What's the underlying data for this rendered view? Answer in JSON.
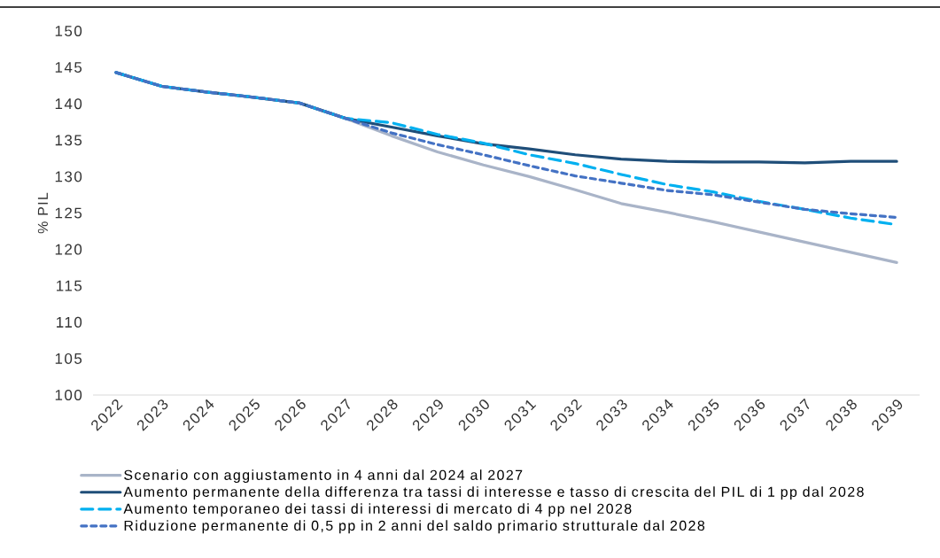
{
  "chart_data": {
    "type": "line",
    "ylabel": "% PIL",
    "categories": [
      "2022",
      "2023",
      "2024",
      "2025",
      "2026",
      "2027",
      "2028",
      "2029",
      "2030",
      "2031",
      "2032",
      "2033",
      "2034",
      "2035",
      "2036",
      "2037",
      "2038",
      "2039"
    ],
    "series": [
      {
        "name": "Scenario con aggiustamento in 4 anni dal 2024 al 2027",
        "color": "#a9b4c8",
        "line_style": "solid",
        "values": [
          144.3,
          142.4,
          141.6,
          140.9,
          140.1,
          138.0,
          135.6,
          133.4,
          131.6,
          130.0,
          128.2,
          126.3,
          125.1,
          123.8,
          122.4,
          121.0,
          119.6,
          118.2
        ]
      },
      {
        "name": "Aumento permanente della differenza tra tassi di interesse e tasso di crescita del PIL di 1 pp dal 2028",
        "color": "#1f4e79",
        "line_style": "solid",
        "values": [
          144.3,
          142.4,
          141.6,
          140.9,
          140.1,
          138.0,
          136.8,
          135.6,
          134.5,
          133.8,
          133.0,
          132.4,
          132.1,
          132.0,
          132.0,
          131.9,
          132.1,
          132.1
        ]
      },
      {
        "name": "Aumento temporaneo dei tassi di interessi di mercato di 4 pp nel 2028",
        "color": "#00b0f0",
        "line_style": "dashed",
        "values": [
          144.3,
          142.4,
          141.6,
          140.9,
          140.1,
          138.0,
          137.4,
          135.8,
          134.6,
          133.0,
          131.8,
          130.3,
          128.9,
          127.9,
          126.6,
          125.5,
          124.3,
          123.4
        ]
      },
      {
        "name": "Riduzione permanente di 0,5 pp in 2 anni del saldo primario strutturale dal 2028",
        "color": "#4472c4",
        "line_style": "dashed",
        "values": [
          144.3,
          142.4,
          141.6,
          140.9,
          140.1,
          138.0,
          136.0,
          134.4,
          133.0,
          131.5,
          130.1,
          129.1,
          128.1,
          127.5,
          126.5,
          125.5,
          124.9,
          124.4
        ]
      }
    ],
    "ylim": [
      100,
      150
    ],
    "yticks": [
      100,
      105,
      110,
      115,
      120,
      125,
      130,
      135,
      140,
      145,
      150
    ],
    "grid": false,
    "legend": "bottom"
  }
}
